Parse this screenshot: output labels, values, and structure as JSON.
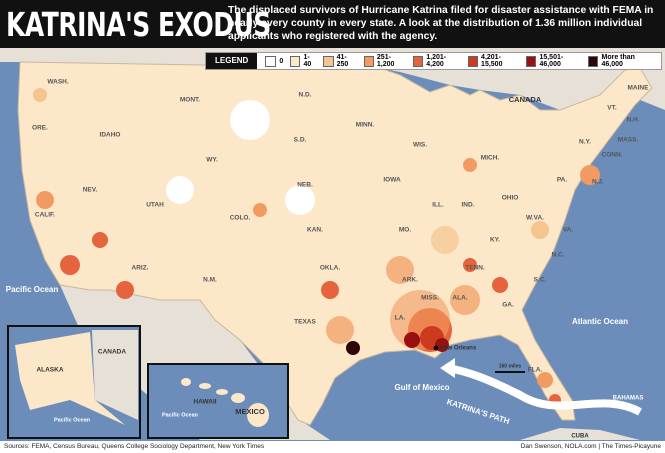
{
  "header": {
    "title": "KATRINA'S EXODUS",
    "description": "The displaced survivors of Hurricane Katrina filed for disaster assistance with FEMA in nearly every county in every state. A look at the distribution of 1.36 million individual applicants who registered with the agency."
  },
  "legend": {
    "title": "LEGEND",
    "items": [
      {
        "label": "0",
        "color": "#ffffff"
      },
      {
        "label": "1-40",
        "color": "#fce7c9"
      },
      {
        "label": "41-250",
        "color": "#f6c48f"
      },
      {
        "label": "251-1,200",
        "color": "#f19b63"
      },
      {
        "label": "1,201-4,200",
        "color": "#e5643e"
      },
      {
        "label": "4,201-15,500",
        "color": "#cc3a1f"
      },
      {
        "label": "15,501-46,000",
        "color": "#981010"
      },
      {
        "label": "More than 46,000",
        "color": "#2b0707"
      }
    ]
  },
  "state_labels": [
    "WASH.",
    "ORE.",
    "IDAHO",
    "MONT.",
    "WY.",
    "NEV.",
    "UTAH",
    "CALIF.",
    "COLO.",
    "ARIZ.",
    "N.M.",
    "N.D.",
    "S.D.",
    "NEB.",
    "KAN.",
    "OKLA.",
    "TEXAS",
    "MINN.",
    "IOWA",
    "MO.",
    "ARK.",
    "LA.",
    "MISS.",
    "WIS.",
    "ILL.",
    "IND.",
    "MICH.",
    "OHIO",
    "KY.",
    "TENN.",
    "ALA.",
    "GA.",
    "FLA.",
    "S.C.",
    "N.C.",
    "VA.",
    "W.VA.",
    "PA.",
    "N.Y.",
    "VT.",
    "N.H.",
    "MAINE",
    "MASS.",
    "CONN.",
    "N.J."
  ],
  "geo_labels": {
    "canada": "CANADA",
    "pacific": "Pacific Ocean",
    "atlantic": "Atlantic Ocean",
    "gulf": "Gulf of Mexico",
    "mexico": "MEXICO",
    "new_orleans": "New Orleans",
    "bahamas": "BAHAMAS",
    "cuba": "CUBA",
    "path": "KATRINA'S PATH",
    "scale": "160 miles",
    "alaska": "ALASKA",
    "alaska_canada": "CANADA",
    "alaska_pacific": "Pacific Ocean",
    "hawaii": "HAWAII",
    "hawaii_pacific": "Pacific Ocean"
  },
  "footer": {
    "sources": "Sources: FEMA, Census Bureau, Queens College Sociology Department, New York Times",
    "credit": "Dan Swenson, NOLA.com | The Times-Picayune"
  }
}
